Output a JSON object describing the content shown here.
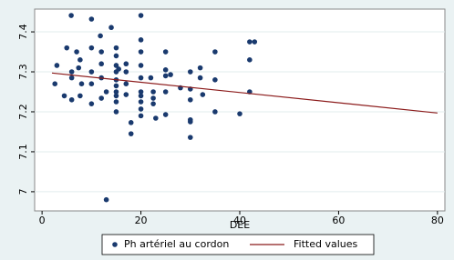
{
  "chart_data": {
    "type": "scatter",
    "x_label": "DEE",
    "xlim": [
      -1.5,
      81.5
    ],
    "ylim": [
      6.952,
      7.457
    ],
    "xticks": [
      0,
      20,
      40,
      60,
      80
    ],
    "yticks": [
      7,
      7.1,
      7.2,
      7.3,
      7.4
    ],
    "grid": true,
    "series": [
      {
        "name": "Ph artériel au cordon",
        "color": "#1a3a6e",
        "type": "scatter",
        "x": [
          5.9,
          10,
          14,
          20,
          11.8,
          3,
          5,
          7,
          7.7,
          10,
          12,
          15,
          15,
          15,
          20,
          20,
          25,
          35,
          42,
          43,
          42,
          2.6,
          6,
          6,
          7.4,
          8,
          10,
          10,
          12,
          12,
          13,
          15,
          15,
          15,
          15,
          15,
          15.5,
          15,
          17,
          17,
          17,
          20,
          20,
          20,
          20,
          22,
          22.5,
          22.5,
          23,
          25,
          25,
          25,
          26,
          30,
          30,
          30,
          32,
          32,
          32.5,
          35,
          35,
          40,
          42,
          30,
          30,
          30,
          18,
          18,
          20,
          20,
          25,
          13,
          4.5,
          7.7,
          10,
          12,
          15,
          6,
          28,
          22.5,
          17,
          20
        ],
        "values": [
          7.441,
          7.432,
          7.411,
          7.441,
          7.39,
          7.316,
          7.36,
          7.35,
          7.33,
          7.36,
          7.35,
          7.36,
          7.34,
          7.316,
          7.38,
          7.35,
          7.35,
          7.35,
          7.375,
          7.375,
          7.33,
          7.27,
          7.3,
          7.285,
          7.31,
          7.27,
          7.3,
          7.27,
          7.285,
          7.32,
          7.25,
          7.3,
          7.28,
          7.265,
          7.25,
          7.24,
          7.307,
          7.225,
          7.32,
          7.3,
          7.27,
          7.316,
          7.285,
          7.25,
          7.24,
          7.285,
          7.25,
          7.234,
          7.184,
          7.25,
          7.305,
          7.29,
          7.293,
          7.3,
          7.257,
          7.23,
          7.31,
          7.285,
          7.243,
          7.28,
          7.2,
          7.195,
          7.25,
          7.18,
          7.175,
          7.136,
          7.173,
          7.145,
          7.207,
          7.19,
          7.193,
          6.98,
          7.24,
          7.24,
          7.22,
          7.234,
          7.2,
          7.23,
          7.26,
          7.22,
          7.243,
          7.225
        ]
      },
      {
        "name": "Fitted values",
        "color": "#8b1a1a",
        "type": "line",
        "x": [
          2,
          80
        ],
        "values": [
          7.297,
          7.197
        ]
      }
    ]
  }
}
